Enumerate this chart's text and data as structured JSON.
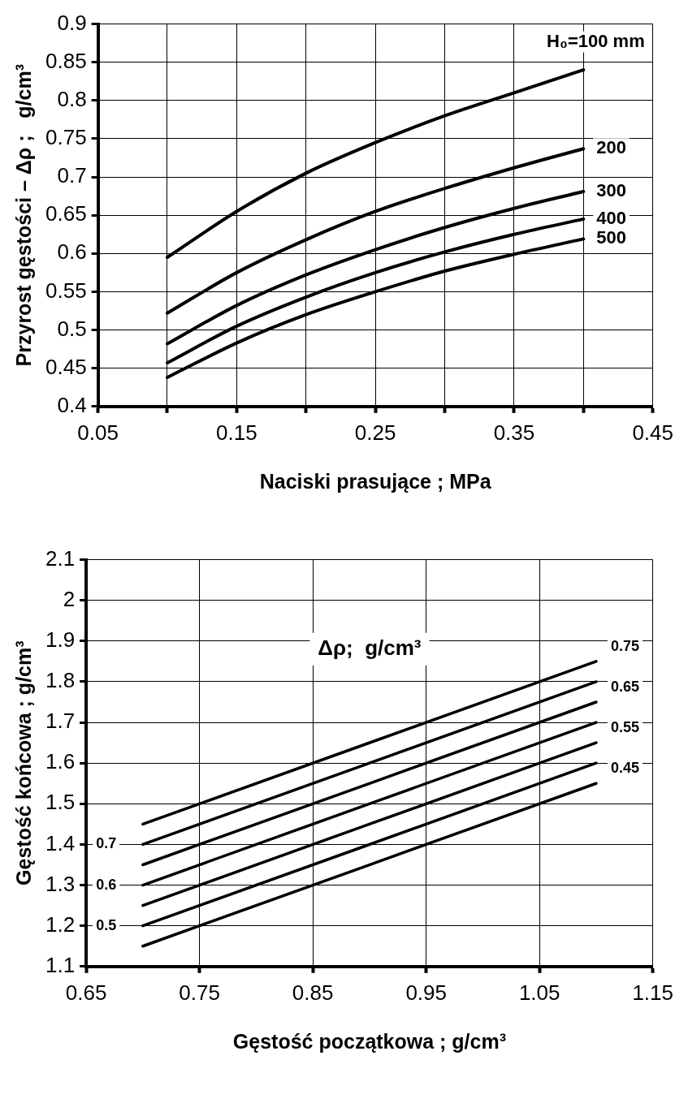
{
  "chart_data": [
    {
      "type": "line",
      "xlabel": "Naciski prasujące ; MPa",
      "ylabel": "Przyrost gęstości – Δρ ;   g/cm³",
      "x": [
        0.1,
        0.15,
        0.2,
        0.25,
        0.3,
        0.35,
        0.4
      ],
      "series": [
        {
          "name": "H₀=100 mm",
          "color": "#000000",
          "values": [
            0.595,
            0.655,
            0.705,
            0.745,
            0.78,
            0.81,
            0.84
          ]
        },
        {
          "name": "200",
          "color": "#000000",
          "values": [
            0.522,
            0.575,
            0.618,
            0.655,
            0.685,
            0.712,
            0.737
          ]
        },
        {
          "name": "300",
          "color": "#000000",
          "values": [
            0.482,
            0.532,
            0.572,
            0.605,
            0.634,
            0.659,
            0.681
          ]
        },
        {
          "name": "400",
          "color": "#000000",
          "values": [
            0.457,
            0.505,
            0.543,
            0.575,
            0.602,
            0.625,
            0.645
          ]
        },
        {
          "name": "500",
          "color": "#000000",
          "values": [
            0.438,
            0.483,
            0.52,
            0.55,
            0.577,
            0.599,
            0.619
          ]
        }
      ],
      "xlim": [
        0.05,
        0.45
      ],
      "xticks": [
        0.05,
        {
          "value": 0.1,
          "label": null
        },
        0.15,
        {
          "value": 0.2,
          "label": null
        },
        0.25,
        {
          "value": 0.3,
          "label": null
        },
        0.35,
        {
          "value": 0.4,
          "label": null
        },
        0.45
      ],
      "ylim": [
        0.4,
        0.9
      ],
      "yticks": [
        0.4,
        0.45,
        0.5,
        0.55,
        0.6,
        0.65,
        0.7,
        0.75,
        0.8,
        0.85,
        0.9
      ],
      "grid": true,
      "legend": false,
      "marker": "none",
      "line_style": "solid"
    },
    {
      "type": "line",
      "xlabel": "Gęstość początkowa ; g/cm³",
      "ylabel": "Gęstość końcowa ; g/cm³",
      "legend_title": "Δρ;  g/cm³",
      "x": [
        0.7,
        1.1
      ],
      "series": [
        {
          "name": "0.75",
          "color": "#000000",
          "values": [
            1.45,
            1.85
          ]
        },
        {
          "name": "0.7",
          "color": "#000000",
          "values": [
            1.4,
            1.8
          ]
        },
        {
          "name": "0.65",
          "color": "#000000",
          "values": [
            1.35,
            1.75
          ]
        },
        {
          "name": "0.6",
          "color": "#000000",
          "values": [
            1.3,
            1.7
          ]
        },
        {
          "name": "0.55",
          "color": "#000000",
          "values": [
            1.25,
            1.65
          ]
        },
        {
          "name": "0.5",
          "color": "#000000",
          "values": [
            1.2,
            1.6
          ]
        },
        {
          "name": "0.45",
          "color": "#000000",
          "values": [
            1.15,
            1.55
          ]
        }
      ],
      "xlim": [
        0.65,
        1.15
      ],
      "xticks": [
        0.65,
        0.75,
        0.85,
        0.95,
        1.05,
        1.15
      ],
      "ylim": [
        1.1,
        2.1
      ],
      "yticks": [
        1.1,
        1.2,
        1.3,
        1.4,
        1.5,
        1.6,
        1.7,
        1.8,
        1.9,
        2,
        2.1
      ],
      "grid": true,
      "legend": false,
      "marker": "none",
      "line_style": "solid"
    }
  ]
}
